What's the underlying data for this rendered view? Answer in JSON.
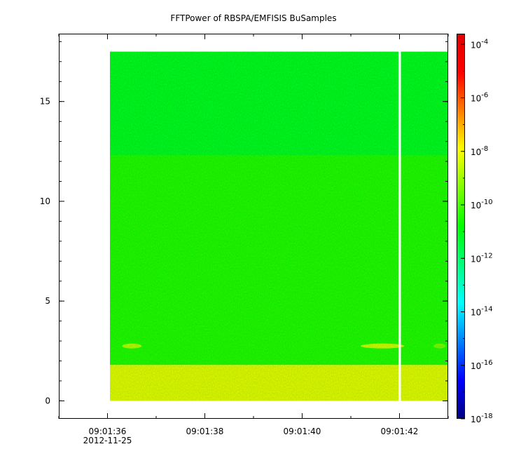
{
  "chart_data": {
    "type": "heatmap",
    "title": "FFTPower of RBSPA/EMFISIS  BuSamples",
    "xlabel": "",
    "ylabel": "",
    "x_axis": {
      "range_seconds": [
        "09:01:35.0",
        "09:01:43.0"
      ],
      "ticks": [
        {
          "time": "09:01:36",
          "label": "09:01:36",
          "sublabel": "2012-11-25"
        },
        {
          "time": "09:01:38",
          "label": "09:01:38",
          "sublabel": ""
        },
        {
          "time": "09:01:40",
          "label": "09:01:40",
          "sublabel": ""
        },
        {
          "time": "09:01:42",
          "label": "09:01:42",
          "sublabel": ""
        }
      ],
      "minor_every_seconds": 1
    },
    "y_axis": {
      "ylim": [
        -0.9,
        18.4
      ],
      "ticks": [
        0,
        5,
        10,
        15
      ],
      "tick_labels": [
        "0",
        "5",
        "10",
        "15"
      ]
    },
    "data_extent": {
      "x_start": "09:01:36.05",
      "x_end": "09:01:43.0",
      "y_min": 0,
      "y_max": 17.5
    },
    "gap": {
      "time": "09:01:42.0"
    },
    "bands": [
      {
        "y_from": 0.0,
        "y_to": 1.8,
        "level_exp": -8.3
      },
      {
        "y_from": 1.8,
        "y_to": 12.3,
        "level_exp": -10.4
      },
      {
        "y_from": 12.3,
        "y_to": 17.5,
        "level_exp": -11.2
      }
    ],
    "features": [
      {
        "x_from": "09:01:36.3",
        "x_to": "09:01:36.7",
        "y": 2.75,
        "level_exp": -8.8
      },
      {
        "x_from": "09:01:41.2",
        "x_to": "09:01:42.1",
        "y": 2.75,
        "level_exp": -8.5
      },
      {
        "x_from": "09:01:42.7",
        "x_to": "09:01:42.95",
        "y": 2.75,
        "level_exp": -9.5
      }
    ],
    "colorbar": {
      "scale": "log",
      "range_exp": [
        -18,
        -3.6
      ],
      "ticks": [
        {
          "exp": -4,
          "base": "10",
          "sup": "-4"
        },
        {
          "exp": -6,
          "base": "10",
          "sup": "-6"
        },
        {
          "exp": -8,
          "base": "10",
          "sup": "-8"
        },
        {
          "exp": -10,
          "base": "10",
          "sup": "-10"
        },
        {
          "exp": -12,
          "base": "10",
          "sup": "-12"
        },
        {
          "exp": -14,
          "base": "10",
          "sup": "-14"
        },
        {
          "exp": -16,
          "base": "10",
          "sup": "-16"
        },
        {
          "exp": -18,
          "base": "10",
          "sup": "-18"
        }
      ],
      "colormap": [
        "#00007f",
        "#0000ff",
        "#007fff",
        "#00ffff",
        "#00ff7f",
        "#00ff00",
        "#7fff00",
        "#ffff00",
        "#ff7f00",
        "#ff0000",
        "#e00000"
      ]
    },
    "grid": false,
    "legend": "none"
  }
}
